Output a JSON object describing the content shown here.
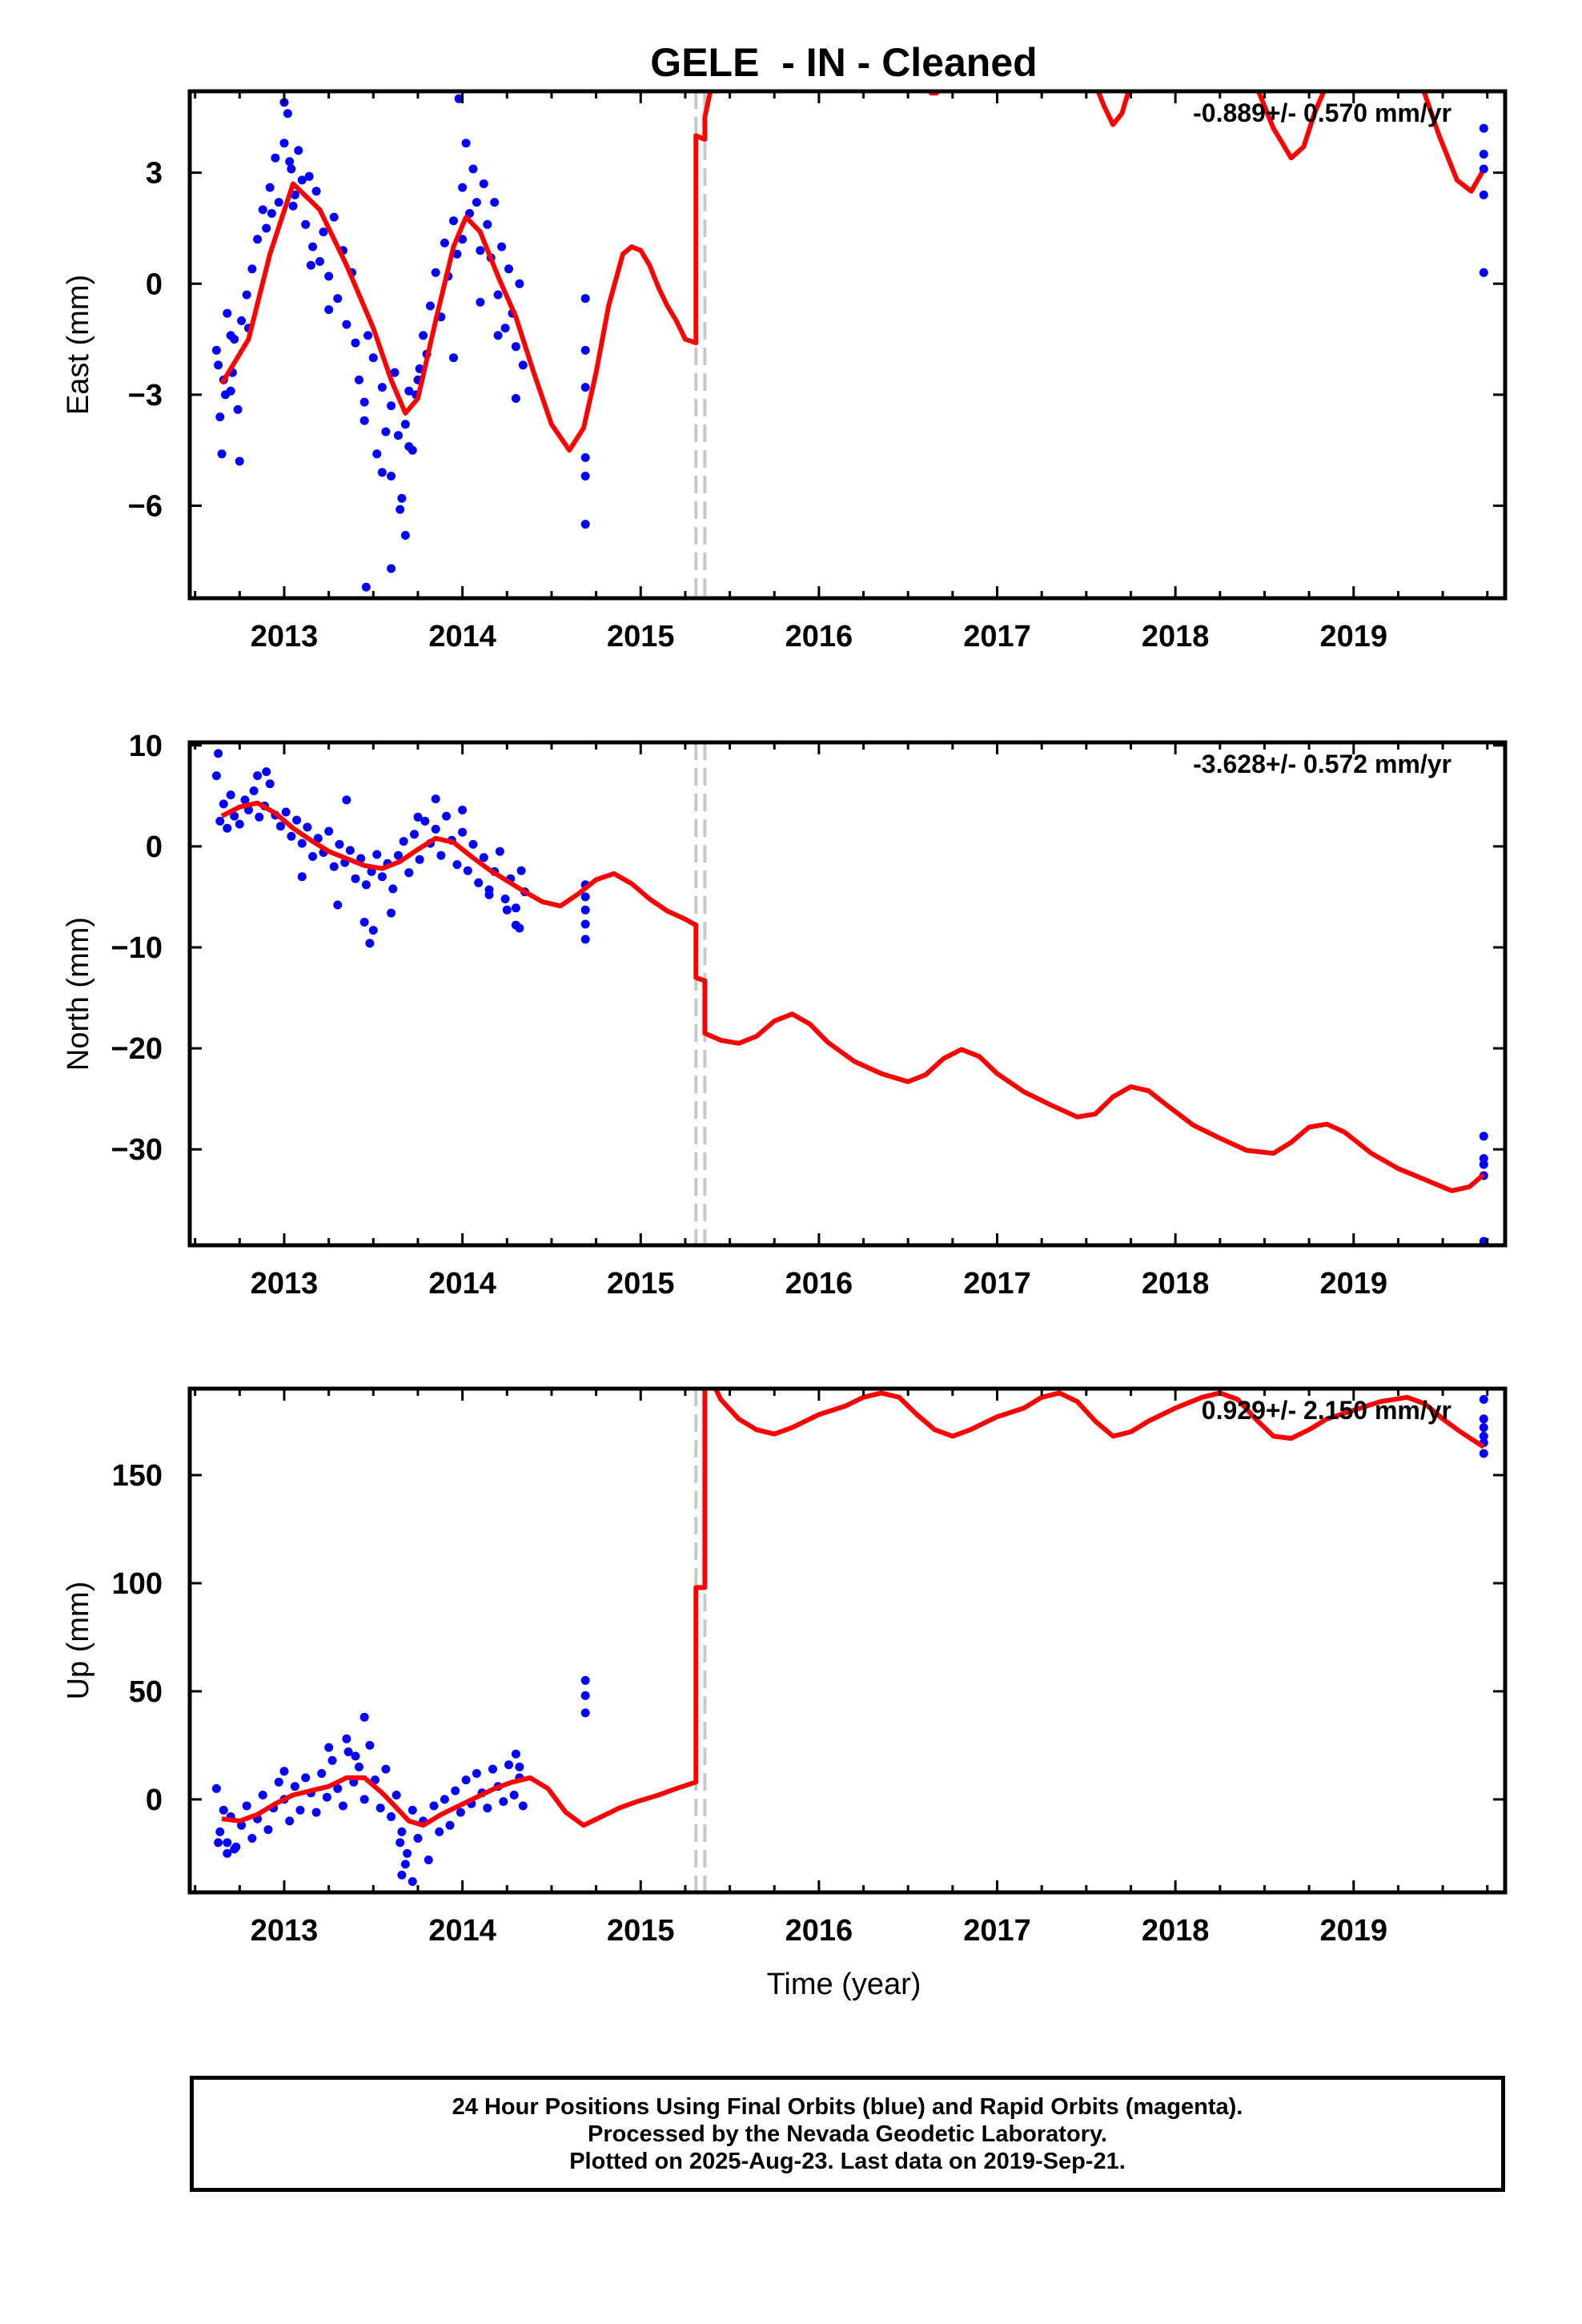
{
  "figure": {
    "title": "GELE  - IN - Cleaned",
    "xlabel": "Time (year)",
    "footer": [
      "24 Hour Positions Using Final Orbits (blue) and Rapid Orbits (magenta).",
      "Processed by the Nevada Geodetic Laboratory.",
      "Plotted on 2025-Aug-23. Last data on 2019-Sep-21."
    ],
    "colors": {
      "data": "#0000ff",
      "model": "#ff0000",
      "offset_line": "#c8c8c8",
      "axes": "#000000"
    }
  },
  "chart_data": [
    {
      "type": "scatter",
      "component": "East",
      "ylabel": "East (mm)",
      "xlim": [
        2012.47,
        2019.85
      ],
      "ylim": [
        -8.5,
        5.2
      ],
      "yticks": [
        -6,
        -3,
        0,
        3
      ],
      "xticks": [
        2013,
        2014,
        2015,
        2016,
        2017,
        2018,
        2019
      ],
      "rate_label": "-0.889+/- 0.570 mm/yr",
      "offset_epochs": [
        2015.31,
        2015.36
      ],
      "model": {
        "name": "",
        "x": [
          2012.65,
          2012.8,
          2012.92,
          2013.05,
          2013.2,
          2013.35,
          2013.5,
          2013.6,
          2013.68,
          2013.75,
          2013.85,
          2013.95,
          2014.02,
          2014.1,
          2014.2,
          2014.3,
          2014.4,
          2014.5,
          2014.6,
          2014.68,
          2014.75,
          2014.82,
          2014.9,
          2014.95,
          2015.0,
          2015.05,
          2015.1,
          2015.15,
          2015.2,
          2015.25,
          2015.31,
          2015.31,
          2015.36,
          2015.36,
          2015.4,
          2015.43
        ],
        "y": [
          -2.7,
          -1.5,
          0.8,
          2.7,
          2.0,
          0.5,
          -1.2,
          -2.6,
          -3.5,
          -3.1,
          -1.0,
          1.0,
          1.8,
          1.4,
          0.2,
          -0.9,
          -2.4,
          -3.8,
          -4.5,
          -3.9,
          -2.4,
          -0.6,
          0.8,
          1.0,
          0.9,
          0.5,
          -0.1,
          -0.6,
          -1.0,
          -1.5,
          -1.6,
          4.0,
          3.9,
          4.5,
          5.4,
          6.0
        ]
      },
      "model_segments": [
        {
          "x": [
            2016.6,
            2016.63,
            2016.66,
            2016.69
          ],
          "y": [
            5.4,
            5.15,
            5.15,
            5.4
          ]
        },
        {
          "x": [
            2017.55,
            2017.6,
            2017.65,
            2017.7,
            2017.75
          ],
          "y": [
            5.4,
            4.8,
            4.3,
            4.6,
            5.4
          ]
        },
        {
          "x": [
            2018.45,
            2018.55,
            2018.65,
            2018.72,
            2018.78,
            2018.85
          ],
          "y": [
            5.4,
            4.2,
            3.4,
            3.7,
            4.6,
            5.4
          ]
        },
        {
          "x": [
            2019.38,
            2019.48,
            2019.58,
            2019.66,
            2019.72
          ],
          "y": [
            5.4,
            4.0,
            2.8,
            2.5,
            3.0
          ]
        }
      ],
      "points": {
        "x": [
          2012.62,
          2012.64,
          2012.66,
          2012.68,
          2012.7,
          2012.72,
          2012.74,
          2012.76,
          2012.63,
          2012.67,
          2012.71,
          2012.75,
          2012.79,
          2012.82,
          2012.85,
          2012.88,
          2012.9,
          2012.92,
          2012.95,
          2012.97,
          2013.0,
          2013.02,
          2013.04,
          2013.06,
          2013.08,
          2013.1,
          2013.12,
          2013.14,
          2013.16,
          2013.18,
          2013.2,
          2013.22,
          2013.25,
          2013.28,
          2013.3,
          2013.33,
          2013.35,
          2013.38,
          2013.4,
          2013.42,
          2013.45,
          2013.47,
          2013.5,
          2013.52,
          2013.55,
          2013.57,
          2013.6,
          2013.62,
          2013.64,
          2013.66,
          2013.68,
          2013.7,
          2013.72,
          2013.74,
          2013.76,
          2013.78,
          2013.8,
          2013.82,
          2013.85,
          2013.88,
          2013.9,
          2013.92,
          2013.95,
          2013.97,
          2014.0,
          2014.02,
          2014.04,
          2014.06,
          2014.08,
          2014.1,
          2014.12,
          2014.14,
          2014.16,
          2014.18,
          2014.2,
          2014.22,
          2014.24,
          2014.26,
          2014.28,
          2014.3,
          2014.32,
          2014.34,
          2012.65,
          2012.8,
          2012.93,
          2013.0,
          2013.05,
          2013.15,
          2013.25,
          2013.45,
          2013.55,
          2013.6,
          2013.65,
          2013.7,
          2013.75,
          2013.95,
          2014.0,
          2014.1,
          2014.2,
          2014.3,
          2013.46,
          2013.6,
          2013.68,
          2012.7,
          2013.03,
          2013.98,
          2014.69,
          2014.69,
          2014.69,
          2014.69,
          2014.69,
          2014.69,
          2019.73,
          2019.73,
          2019.73,
          2019.73,
          2019.73
        ],
        "y": [
          -1.8,
          -3.6,
          -2.6,
          -0.8,
          -2.9,
          -1.5,
          -3.4,
          -1.0,
          -2.2,
          -3.0,
          -2.4,
          -4.8,
          -0.3,
          0.4,
          1.2,
          2.0,
          1.5,
          2.6,
          3.4,
          2.2,
          3.8,
          4.6,
          3.1,
          2.4,
          3.6,
          2.8,
          1.6,
          2.9,
          1.0,
          2.5,
          0.6,
          1.4,
          0.2,
          1.8,
          -0.4,
          0.9,
          -1.1,
          0.3,
          -1.6,
          -2.6,
          -3.2,
          -1.4,
          -2.0,
          -4.6,
          -2.8,
          -4.0,
          -3.3,
          -2.4,
          -4.1,
          -5.8,
          -3.8,
          -2.9,
          -4.5,
          -3.0,
          -2.3,
          -1.4,
          -1.9,
          -0.6,
          0.3,
          -0.9,
          1.1,
          0.2,
          1.7,
          0.8,
          2.6,
          3.8,
          1.9,
          3.1,
          2.2,
          0.9,
          2.7,
          1.6,
          0.7,
          2.2,
          -0.3,
          1.0,
          -1.2,
          0.4,
          -0.8,
          -1.7,
          0.0,
          -2.2,
          -4.6,
          -1.2,
          1.9,
          4.9,
          2.1,
          0.5,
          -0.7,
          -3.7,
          -5.1,
          -7.7,
          -6.1,
          -4.4,
          -2.6,
          -2.0,
          1.2,
          -0.5,
          -1.4,
          -3.1,
          -8.2,
          -5.2,
          -6.8,
          -1.4,
          3.3,
          5.0,
          -0.4,
          -1.8,
          -2.8,
          -4.7,
          -5.2,
          -6.5,
          4.2,
          3.5,
          3.1,
          2.4,
          0.3
        ]
      }
    },
    {
      "type": "scatter",
      "component": "North",
      "ylabel": "North (mm)",
      "xlim": [
        2012.47,
        2019.85
      ],
      "ylim": [
        -39.5,
        10.3
      ],
      "yticks": [
        -30,
        -20,
        -10,
        0,
        10
      ],
      "xticks": [
        2013,
        2014,
        2015,
        2016,
        2017,
        2018,
        2019
      ],
      "rate_label": "-3.628+/- 0.572 mm/yr",
      "offset_epochs": [
        2015.31,
        2015.36
      ],
      "model": {
        "name": "",
        "x": [
          2012.65,
          2012.75,
          2012.85,
          2012.95,
          2013.05,
          2013.15,
          2013.25,
          2013.35,
          2013.45,
          2013.55,
          2013.65,
          2013.75,
          2013.85,
          2013.95,
          2014.05,
          2014.15,
          2014.25,
          2014.35,
          2014.45,
          2014.55,
          2014.65,
          2014.75,
          2014.85,
          2014.95,
          2015.05,
          2015.15,
          2015.25,
          2015.31,
          2015.31,
          2015.36,
          2015.36,
          2015.45,
          2015.55,
          2015.65,
          2015.75,
          2015.85,
          2015.95,
          2016.05,
          2016.2,
          2016.35,
          2016.5,
          2016.6,
          2016.7,
          2016.8,
          2016.9,
          2017.0,
          2017.15,
          2017.3,
          2017.45,
          2017.55,
          2017.65,
          2017.75,
          2017.85,
          2017.95,
          2018.1,
          2018.25,
          2018.4,
          2018.55,
          2018.65,
          2018.75,
          2018.85,
          2018.95,
          2019.1,
          2019.25,
          2019.4,
          2019.55,
          2019.65,
          2019.73
        ],
        "y": [
          3.0,
          3.9,
          4.3,
          3.3,
          1.8,
          0.6,
          -0.5,
          -1.2,
          -1.9,
          -2.2,
          -1.5,
          -0.3,
          0.8,
          0.4,
          -1.0,
          -2.3,
          -3.4,
          -4.5,
          -5.5,
          -5.9,
          -4.7,
          -3.3,
          -2.7,
          -3.7,
          -5.2,
          -6.4,
          -7.2,
          -7.8,
          -13.0,
          -13.3,
          -18.5,
          -19.2,
          -19.5,
          -18.8,
          -17.3,
          -16.6,
          -17.6,
          -19.4,
          -21.3,
          -22.5,
          -23.3,
          -22.6,
          -21.0,
          -20.1,
          -20.8,
          -22.5,
          -24.3,
          -25.6,
          -26.8,
          -26.5,
          -24.8,
          -23.8,
          -24.2,
          -25.6,
          -27.6,
          -28.9,
          -30.1,
          -30.4,
          -29.3,
          -27.8,
          -27.5,
          -28.3,
          -30.4,
          -31.9,
          -33.0,
          -34.1,
          -33.7,
          -32.5
        ]
      },
      "points": {
        "x": [
          2012.62,
          2012.64,
          2012.66,
          2012.68,
          2012.7,
          2012.72,
          2012.75,
          2012.78,
          2012.8,
          2012.83,
          2012.86,
          2012.89,
          2012.92,
          2012.95,
          2012.98,
          2013.01,
          2013.04,
          2013.07,
          2013.1,
          2013.13,
          2013.16,
          2013.19,
          2013.22,
          2013.25,
          2013.28,
          2013.31,
          2013.34,
          2013.37,
          2013.4,
          2013.43,
          2013.46,
          2013.49,
          2013.52,
          2013.55,
          2013.58,
          2013.61,
          2013.64,
          2013.67,
          2013.7,
          2013.73,
          2013.76,
          2013.79,
          2013.82,
          2013.85,
          2013.88,
          2013.91,
          2013.94,
          2013.97,
          2014.0,
          2014.03,
          2014.06,
          2014.09,
          2014.12,
          2014.15,
          2014.18,
          2014.21,
          2014.24,
          2014.27,
          2014.3,
          2014.33,
          2014.35,
          2012.63,
          2012.9,
          2013.1,
          2013.3,
          2013.45,
          2013.48,
          2013.5,
          2013.6,
          2013.7,
          2013.85,
          2014.0,
          2014.15,
          2014.25,
          2014.3,
          2014.32,
          2012.85,
          2013.35,
          2013.75,
          2014.69,
          2014.69,
          2014.69,
          2014.69,
          2014.69,
          2019.73,
          2019.73,
          2019.73,
          2019.73,
          2019.73
        ],
        "y": [
          7.0,
          2.5,
          4.2,
          1.8,
          5.1,
          3.0,
          2.2,
          4.6,
          3.6,
          5.5,
          2.9,
          4.0,
          6.2,
          3.1,
          2.0,
          3.4,
          1.0,
          2.6,
          0.3,
          1.9,
          -1.0,
          0.8,
          -0.6,
          1.5,
          -2.0,
          0.2,
          -1.6,
          -0.4,
          -3.2,
          -1.2,
          -3.8,
          -2.5,
          -0.8,
          -3.0,
          -1.7,
          -4.2,
          -0.9,
          0.5,
          -2.6,
          1.2,
          -1.3,
          2.5,
          0.3,
          1.7,
          -0.9,
          3.0,
          0.6,
          -1.8,
          1.4,
          -2.4,
          0.2,
          -3.6,
          -1.1,
          -4.3,
          -2.5,
          -0.5,
          -5.2,
          -3.2,
          -6.1,
          -2.4,
          -4.5,
          9.2,
          7.4,
          -3.0,
          -5.8,
          -7.5,
          -9.6,
          -8.3,
          -6.6,
          -2.6,
          4.7,
          3.6,
          -4.8,
          -6.3,
          -7.8,
          -8.1,
          7.0,
          4.6,
          2.9,
          -3.8,
          -5.0,
          -6.3,
          -7.7,
          -9.2,
          -28.7,
          -30.9,
          -31.5,
          -32.6,
          -39.1
        ]
      }
    },
    {
      "type": "scatter",
      "component": "Up",
      "ylabel": "Up (mm)",
      "xlim": [
        2012.47,
        2019.85
      ],
      "ylim": [
        -43,
        190
      ],
      "yticks": [
        0,
        50,
        100,
        150
      ],
      "xticks": [
        2013,
        2014,
        2015,
        2016,
        2017,
        2018,
        2019
      ],
      "rate_label": "0.929+/- 2.150 mm/yr",
      "offset_epochs": [
        2015.31,
        2015.36
      ],
      "model": {
        "name": "",
        "x": [
          2012.65,
          2012.75,
          2012.85,
          2012.95,
          2013.05,
          2013.15,
          2013.25,
          2013.35,
          2013.45,
          2013.55,
          2013.62,
          2013.7,
          2013.78,
          2013.88,
          2013.98,
          2014.08,
          2014.18,
          2014.28,
          2014.38,
          2014.48,
          2014.58,
          2014.68,
          2014.78,
          2014.88,
          2014.98,
          2015.1,
          2015.2,
          2015.31,
          2015.31,
          2015.36,
          2015.36,
          2015.45,
          2015.55,
          2015.65,
          2015.75,
          2015.85,
          2016.0,
          2016.15,
          2016.25,
          2016.35,
          2016.45,
          2016.55,
          2016.65,
          2016.75,
          2016.85,
          2017.0,
          2017.15,
          2017.25,
          2017.35,
          2017.45,
          2017.55,
          2017.65,
          2017.75,
          2017.85,
          2018.0,
          2018.15,
          2018.25,
          2018.35,
          2018.45,
          2018.55,
          2018.65,
          2018.75,
          2018.85,
          2019.0,
          2019.15,
          2019.3,
          2019.4,
          2019.5,
          2019.6,
          2019.73
        ],
        "y": [
          -9,
          -10,
          -7,
          -2,
          2,
          4,
          6,
          10,
          10,
          3,
          -3,
          -10,
          -12,
          -7,
          -3,
          1,
          5,
          8,
          10,
          5,
          -6,
          -12,
          -8,
          -4,
          -1,
          2,
          5,
          8,
          98,
          98,
          200,
          185,
          176,
          171,
          169,
          172,
          178,
          182,
          186,
          188,
          186,
          178,
          171,
          168,
          171,
          177,
          181,
          186,
          188,
          184,
          175,
          168,
          170,
          175,
          181,
          186,
          188,
          185,
          176,
          168,
          167,
          171,
          176,
          180,
          184,
          186,
          183,
          176,
          170,
          163
        ]
      },
      "points": {
        "x": [
          2012.62,
          2012.64,
          2012.66,
          2012.68,
          2012.7,
          2012.73,
          2012.76,
          2012.79,
          2012.82,
          2012.85,
          2012.88,
          2012.91,
          2012.94,
          2012.97,
          2013.0,
          2013.03,
          2013.06,
          2013.09,
          2013.12,
          2013.15,
          2013.18,
          2013.21,
          2013.24,
          2013.27,
          2013.3,
          2013.33,
          2013.36,
          2013.39,
          2013.42,
          2013.45,
          2013.48,
          2013.51,
          2013.54,
          2013.57,
          2013.6,
          2013.63,
          2013.66,
          2013.69,
          2013.72,
          2013.75,
          2013.78,
          2013.81,
          2013.84,
          2013.87,
          2013.9,
          2013.93,
          2013.96,
          2013.99,
          2014.02,
          2014.05,
          2014.08,
          2014.11,
          2014.14,
          2014.17,
          2014.2,
          2014.23,
          2014.26,
          2014.29,
          2014.32,
          2014.34,
          2012.63,
          2012.68,
          2012.72,
          2013.0,
          2013.25,
          2013.35,
          2013.4,
          2013.45,
          2013.65,
          2013.68,
          2013.72,
          2013.66,
          2014.3,
          2014.32,
          2014.69,
          2014.69,
          2014.69,
          2019.73,
          2019.73,
          2019.73,
          2019.73,
          2019.73,
          2019.73
        ],
        "y": [
          5,
          -15,
          -5,
          -20,
          -8,
          -22,
          -12,
          -3,
          -18,
          -9,
          2,
          -14,
          -4,
          8,
          0,
          -10,
          6,
          -5,
          10,
          3,
          -6,
          12,
          1,
          18,
          5,
          -3,
          22,
          8,
          15,
          0,
          25,
          9,
          -4,
          14,
          -8,
          2,
          -15,
          -25,
          -5,
          -18,
          -10,
          -28,
          -3,
          -15,
          0,
          -12,
          4,
          -6,
          9,
          -2,
          12,
          3,
          -4,
          14,
          6,
          -1,
          16,
          2,
          10,
          -3,
          -20,
          -25,
          -23,
          13,
          24,
          28,
          20,
          38,
          -20,
          -30,
          -38,
          -35,
          21,
          15,
          55,
          48,
          40,
          185,
          176,
          172,
          168,
          165,
          160
        ]
      }
    }
  ]
}
